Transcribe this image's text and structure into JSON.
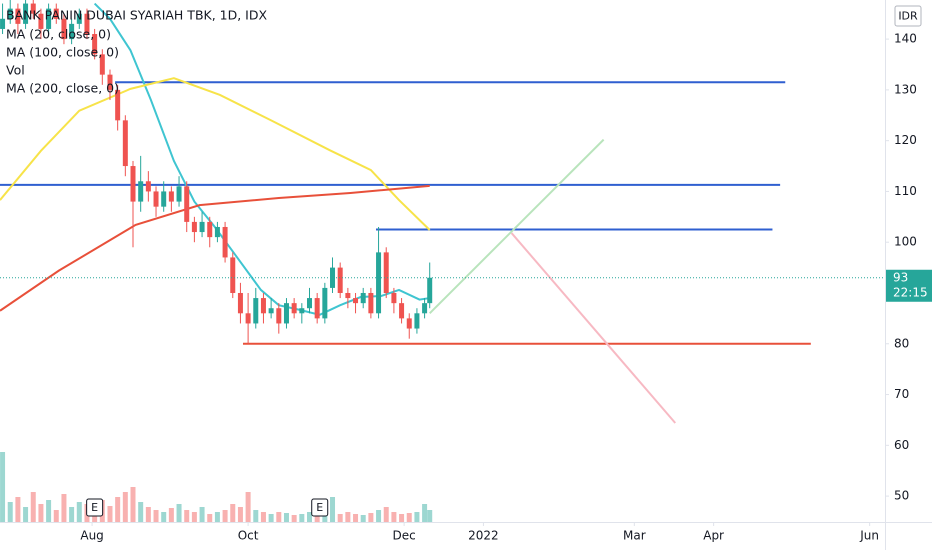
{
  "chart_data": {
    "type": "candlestick",
    "title": "BANK PANIN DUBAI SYARIAH TBK, 1D, IDX",
    "currency": "IDR",
    "up_color": "#26a69a",
    "down_color": "#ef5350",
    "x": [
      -4,
      -1,
      2,
      5,
      8,
      11,
      14,
      17,
      20,
      23,
      26,
      29,
      32,
      35,
      38,
      41,
      44,
      47,
      50,
      53,
      56,
      59,
      62,
      65,
      68,
      71,
      74,
      77,
      80,
      83,
      86,
      89,
      92,
      95,
      98,
      101,
      104,
      107,
      110,
      113,
      116,
      119,
      122,
      125,
      128,
      131,
      134,
      137,
      140,
      143,
      146,
      149,
      152,
      155,
      158,
      161,
      163
    ],
    "open": [
      142,
      144,
      146,
      143,
      147,
      145,
      142,
      146,
      144,
      140,
      143,
      145,
      141,
      137,
      133,
      130,
      124,
      115,
      108,
      112,
      110,
      107,
      110,
      108,
      111,
      104,
      102,
      104,
      101,
      103,
      97,
      90,
      86,
      84,
      89,
      86,
      87,
      84,
      88,
      86,
      87,
      89,
      85,
      91,
      95,
      90,
      89,
      88,
      90,
      86,
      98,
      90,
      88,
      85,
      83,
      86,
      88
    ],
    "high": [
      147,
      148,
      147,
      148,
      148,
      146,
      147,
      147,
      145,
      144,
      146,
      146,
      142,
      138,
      134,
      131,
      125,
      116,
      117,
      114,
      111,
      112,
      111,
      113,
      112,
      105,
      106,
      105,
      104,
      104,
      98,
      92,
      90,
      91,
      90,
      89,
      88,
      89,
      89,
      88,
      91,
      90,
      92,
      97,
      96,
      91,
      90,
      91,
      91,
      103,
      99,
      91,
      89,
      86,
      87,
      89,
      96
    ],
    "low": [
      141,
      143,
      141,
      142,
      144,
      140,
      141,
      143,
      139,
      139,
      142,
      140,
      136,
      131,
      128,
      122,
      113,
      99,
      106,
      108,
      105,
      106,
      106,
      107,
      102,
      100,
      101,
      99,
      100,
      96,
      89,
      84,
      80,
      83,
      84,
      85,
      82,
      83,
      85,
      84,
      86,
      84,
      84,
      90,
      89,
      87,
      86,
      87,
      85,
      85,
      89,
      86,
      84,
      81,
      82,
      85,
      87
    ],
    "close": [
      144,
      146,
      143,
      147,
      145,
      142,
      146,
      144,
      140,
      143,
      145,
      141,
      137,
      133,
      130,
      124,
      115,
      108,
      112,
      110,
      107,
      110,
      108,
      111,
      104,
      102,
      104,
      101,
      103,
      97,
      90,
      86,
      84,
      89,
      86,
      87,
      84,
      88,
      86,
      87,
      89,
      85,
      91,
      95,
      90,
      89,
      88,
      90,
      86,
      98,
      90,
      88,
      85,
      83,
      86,
      88,
      93
    ],
    "volume": {
      "name": "Vol",
      "ylim": [
        0,
        150
      ],
      "values": [
        70,
        20,
        25,
        15,
        30,
        18,
        22,
        12,
        28,
        15,
        20,
        18,
        12,
        22,
        16,
        25,
        30,
        35,
        20,
        15,
        12,
        10,
        14,
        18,
        12,
        10,
        15,
        8,
        10,
        12,
        18,
        15,
        30,
        12,
        10,
        8,
        10,
        9,
        7,
        8,
        10,
        12,
        9,
        25,
        8,
        10,
        8,
        7,
        9,
        12,
        15,
        10,
        8,
        9,
        10,
        18,
        12
      ]
    },
    "series": [
      {
        "name": "MA (20, close, 0)",
        "color": "#3fc5d1",
        "x": [
          32,
          38,
          46,
          54,
          63,
          71,
          79,
          87,
          97,
          104,
          112,
          120,
          128,
          136,
          144,
          151,
          159,
          163
        ],
        "values": [
          147,
          144,
          137.8,
          128,
          116,
          108,
          103,
          97.5,
          90.6,
          87.6,
          86.7,
          85.7,
          87.6,
          89.2,
          89.4,
          90.6,
          88.7,
          89
        ]
      },
      {
        "name": "MA (100, close, 0)",
        "color": "#f7e349",
        "x": [
          -5,
          11,
          26,
          46,
          63,
          81,
          101,
          124,
          140,
          151,
          163
        ],
        "values": [
          108.3,
          118,
          125.9,
          130.2,
          132.3,
          129,
          124,
          118.1,
          114.2,
          108.3,
          102.4
        ]
      },
      {
        "name": "MA (200, close, 0)",
        "color": "#e8503a",
        "x": [
          -5,
          18,
          48,
          73,
          104,
          132,
          163
        ],
        "values": [
          86.5,
          94.4,
          103.4,
          107.3,
          108.7,
          109.7,
          111.1
        ]
      }
    ],
    "drawings": [
      {
        "color": "#2f5fd0",
        "x": [
          40,
          302
        ],
        "y": [
          131.5,
          131.5
        ]
      },
      {
        "color": "#2f5fd0",
        "x": [
          -5,
          300
        ],
        "y": [
          111.3,
          111.3
        ]
      },
      {
        "color": "#2f5fd0",
        "x": [
          142,
          297
        ],
        "y": [
          102.5,
          102.5
        ]
      },
      {
        "color": "#e8503a",
        "x": [
          90,
          312
        ],
        "y": [
          80,
          80
        ]
      },
      {
        "color": "#b9e4bc",
        "x": [
          163,
          231
        ],
        "y": [
          86,
          120.2
        ]
      },
      {
        "color": "#f7b9c3",
        "x": [
          195,
          259
        ],
        "y": [
          101.8,
          64.4
        ]
      }
    ],
    "events": [
      {
        "x": 32,
        "label": "E"
      },
      {
        "x": 120,
        "label": "E"
      }
    ],
    "last_price": 93,
    "countdown": "22:15",
    "xlim": [
      -5,
      341
    ],
    "ylim": [
      44.9,
      147.7
    ],
    "xticks": [
      {
        "value": 31,
        "label": "Aug"
      },
      {
        "value": 92,
        "label": "Oct"
      },
      {
        "value": 153,
        "label": "Dec"
      },
      {
        "value": 184,
        "label": "2022"
      },
      {
        "value": 243,
        "label": "Mar"
      },
      {
        "value": 274,
        "label": "Apr"
      },
      {
        "value": 335,
        "label": "Jun"
      }
    ],
    "yticks": [
      50,
      60,
      70,
      80,
      90,
      100,
      110,
      120,
      130,
      140
    ],
    "grid": false
  }
}
